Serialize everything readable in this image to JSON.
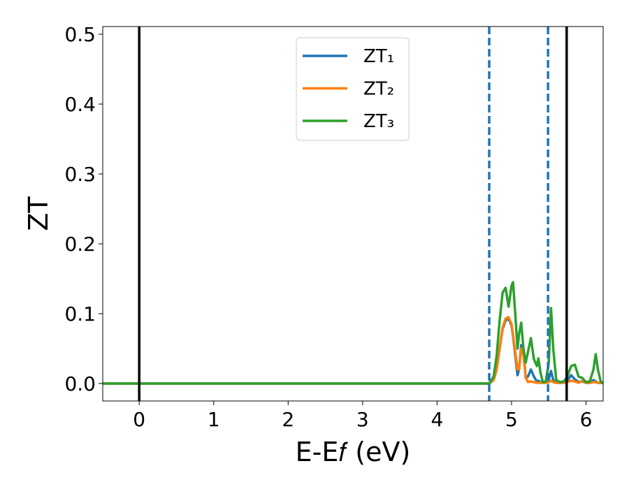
{
  "chart_data": {
    "type": "line",
    "xlabel": "E-E𝑓 (eV)",
    "ylabel": "ZT",
    "x": [
      -0.49,
      4.6,
      4.7,
      4.76,
      4.8,
      4.84,
      4.88,
      4.92,
      4.96,
      5.0,
      5.02,
      5.05,
      5.08,
      5.1,
      5.13,
      5.16,
      5.19,
      5.22,
      5.26,
      5.3,
      5.34,
      5.36,
      5.39,
      5.42,
      5.46,
      5.5,
      5.53,
      5.56,
      5.6,
      5.65,
      5.7,
      5.75,
      5.8,
      5.85,
      5.9,
      5.95,
      6.0,
      6.05,
      6.1,
      6.13,
      6.16,
      6.2,
      6.23
    ],
    "series": [
      {
        "name": "ZT₁",
        "color": "#1f77b4",
        "values": [
          0,
          0,
          0,
          0.005,
          0.02,
          0.05,
          0.078,
          0.09,
          0.093,
          0.083,
          0.068,
          0.04,
          0.012,
          0.02,
          0.055,
          0.05,
          0.008,
          0.01,
          0.02,
          0.01,
          0.003,
          0.004,
          0.002,
          0.001,
          0.002,
          0.006,
          0.018,
          0.005,
          0.001,
          0.001,
          0.002,
          0.004,
          0.012,
          0.006,
          0.002,
          0.003,
          0.001,
          0.001,
          0.005,
          0.003,
          0.001,
          0.001,
          0.001
        ]
      },
      {
        "name": "ZT₂",
        "color": "#ff7f0e",
        "values": [
          0,
          0,
          0,
          0.005,
          0.02,
          0.05,
          0.08,
          0.093,
          0.095,
          0.085,
          0.07,
          0.045,
          0.02,
          0.02,
          0.05,
          0.04,
          0.01,
          0.002,
          0.003,
          0.002,
          0.001,
          0.001,
          0.001,
          0.001,
          0.001,
          0.002,
          0.004,
          0.002,
          0.001,
          0.001,
          0.001,
          0.002,
          0.004,
          0.003,
          0.001,
          0.004,
          0.001,
          0.001,
          0.002,
          0.002,
          0.001,
          0.001,
          0.001
        ]
      },
      {
        "name": "ZT₃",
        "color": "#2ca02c",
        "values": [
          0,
          0,
          0,
          0.01,
          0.04,
          0.09,
          0.13,
          0.137,
          0.11,
          0.14,
          0.145,
          0.1,
          0.05,
          0.07,
          0.087,
          0.05,
          0.03,
          0.045,
          0.065,
          0.035,
          0.025,
          0.036,
          0.015,
          0.002,
          0.003,
          0.03,
          0.108,
          0.05,
          0.005,
          0.002,
          0.003,
          0.01,
          0.025,
          0.027,
          0.01,
          0.008,
          0.002,
          0.003,
          0.02,
          0.042,
          0.02,
          0.002,
          0.001
        ]
      }
    ],
    "vlines": [
      {
        "x": 0,
        "color": "#000000",
        "style": "solid"
      },
      {
        "x": 5.74,
        "color": "#000000",
        "style": "solid"
      },
      {
        "x": 4.7,
        "color": "#1f77b4",
        "style": "dashed"
      },
      {
        "x": 5.49,
        "color": "#1f77b4",
        "style": "dashed"
      }
    ],
    "xlim": [
      -0.49,
      6.23
    ],
    "ylim": [
      -0.025,
      0.511
    ],
    "xticks": [
      0,
      1,
      2,
      3,
      4,
      5,
      6
    ],
    "yticks": [
      {
        "value": 0,
        "label": "0.0"
      },
      0.1,
      0.2,
      0.3,
      0.4,
      0.5
    ],
    "legend": "upper center",
    "grid": false
  }
}
